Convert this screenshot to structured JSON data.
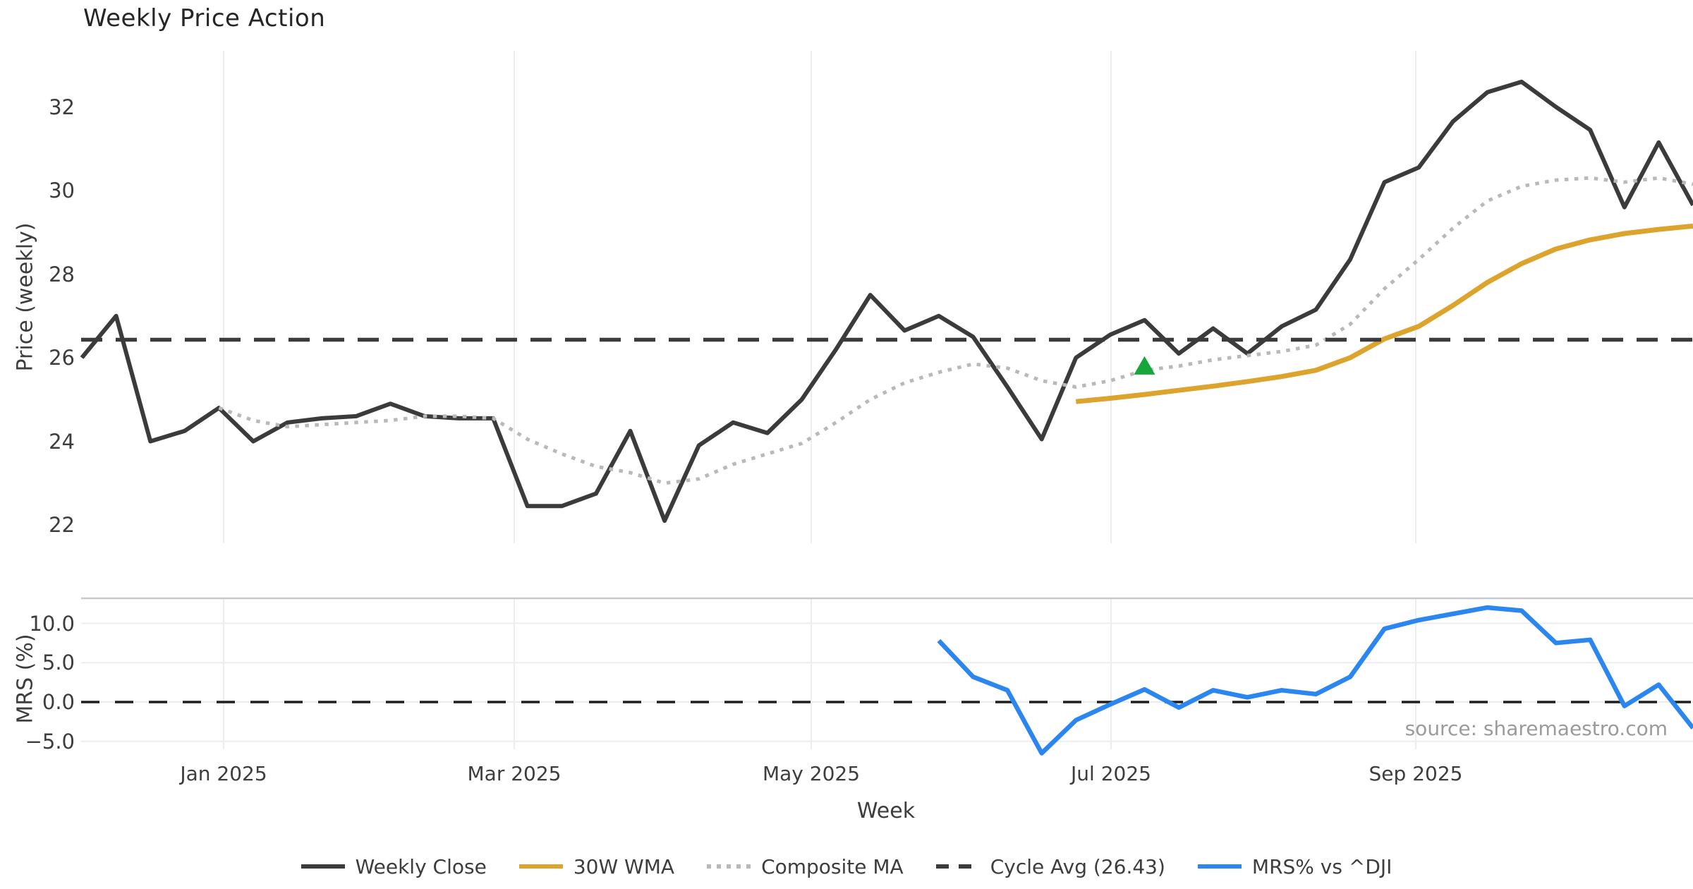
{
  "title": "Weekly Price Action",
  "source_text": "source: sharemaestro.com",
  "colors": {
    "weekly_close": "#3b3b3b",
    "wma_30w": "#dca42c",
    "composite_ma": "#b9b9b9",
    "cycle_avg": "#3b3b3b",
    "mrs_line": "#2b86ef",
    "signal_marker": "#17a63a",
    "gridline": "#ededf0",
    "panel_spine": "#c9c9d2",
    "zero_dash": "#1f1f1f",
    "tick_text": "#3d3d3d",
    "title_text": "#262626",
    "source_text": "#9b9b9b"
  },
  "axes": {
    "price_label": "Price (weekly)",
    "mrs_label": "MRS (%)",
    "x_label": "Week",
    "price_ticks": [
      "32",
      "30",
      "28",
      "26",
      "24",
      "22"
    ],
    "mrs_ticks": [
      "10.0",
      "5.0",
      "0.0",
      "−5.0"
    ],
    "x_ticks": [
      "Jan 2025",
      "Mar 2025",
      "May 2025",
      "Jul 2025",
      "Sep 2025"
    ]
  },
  "legend": {
    "items": [
      {
        "label": "Weekly Close",
        "style": "solid",
        "color": "#3b3b3b"
      },
      {
        "label": "30W WMA",
        "style": "solid",
        "color": "#dca42c"
      },
      {
        "label": "Composite MA",
        "style": "dotted",
        "color": "#b9b9b9"
      },
      {
        "label": "Cycle Avg (26.43)",
        "style": "dashed",
        "color": "#3b3b3b"
      },
      {
        "label": "MRS% vs ^DJI",
        "style": "solid",
        "color": "#2b86ef"
      }
    ]
  },
  "chart_data": {
    "type": "line",
    "title": "Weekly Price Action",
    "xlabel": "Week",
    "x_tick_labels": [
      "Jan 2025",
      "Mar 2025",
      "May 2025",
      "Jul 2025",
      "Sep 2025"
    ],
    "x_weeks": [
      "2024-12-09",
      "2024-12-16",
      "2024-12-23",
      "2024-12-30",
      "2025-01-06",
      "2025-01-13",
      "2025-01-20",
      "2025-01-27",
      "2025-02-03",
      "2025-02-10",
      "2025-02-17",
      "2025-02-24",
      "2025-03-03",
      "2025-03-10",
      "2025-03-17",
      "2025-03-24",
      "2025-03-31",
      "2025-04-07",
      "2025-04-14",
      "2025-04-21",
      "2025-04-28",
      "2025-05-05",
      "2025-05-12",
      "2025-05-19",
      "2025-05-26",
      "2025-06-02",
      "2025-06-09",
      "2025-06-16",
      "2025-06-23",
      "2025-06-30",
      "2025-07-07",
      "2025-07-14",
      "2025-07-21",
      "2025-07-28",
      "2025-08-04",
      "2025-08-11",
      "2025-08-18",
      "2025-08-25",
      "2025-09-01",
      "2025-09-08",
      "2025-09-15",
      "2025-09-22",
      "2025-09-29",
      "2025-10-06",
      "2025-10-13",
      "2025-10-20",
      "2025-10-27",
      "2025-11-03"
    ],
    "panels": [
      {
        "ylabel": "Price (weekly)",
        "ylim": [
          21.5,
          33.5
        ],
        "y_ticks": [
          22,
          24,
          26,
          28,
          30,
          32
        ],
        "grid": "vertical-only",
        "series": [
          {
            "name": "Weekly Close",
            "color": "#3b3b3b",
            "style": "solid",
            "width": 6,
            "values": [
              26.0,
              27.0,
              24.0,
              24.25,
              24.8,
              24.0,
              24.45,
              24.55,
              24.6,
              24.9,
              24.6,
              24.55,
              24.55,
              22.45,
              22.45,
              22.75,
              24.25,
              22.1,
              23.9,
              24.45,
              24.2,
              25.0,
              26.2,
              27.5,
              26.65,
              27.0,
              26.5,
              25.3,
              24.05,
              26.0,
              26.55,
              26.9,
              26.1,
              26.7,
              26.1,
              26.75,
              27.15,
              28.35,
              30.2,
              30.55,
              31.65,
              32.35,
              32.6,
              32.0,
              31.45,
              29.6,
              31.15,
              29.65
            ]
          },
          {
            "name": "30W WMA",
            "color": "#dca42c",
            "style": "solid",
            "width": 7,
            "values": [
              null,
              null,
              null,
              null,
              null,
              null,
              null,
              null,
              null,
              null,
              null,
              null,
              null,
              null,
              null,
              null,
              null,
              null,
              null,
              null,
              null,
              null,
              null,
              null,
              null,
              null,
              null,
              null,
              null,
              24.95,
              25.03,
              25.12,
              25.22,
              25.32,
              25.43,
              25.55,
              25.7,
              26.0,
              26.45,
              26.75,
              27.25,
              27.8,
              28.25,
              28.6,
              28.82,
              28.97,
              29.07,
              29.15
            ]
          },
          {
            "name": "Composite MA",
            "color": "#b9b9b9",
            "style": "dotted",
            "width": 5,
            "values": [
              null,
              null,
              null,
              null,
              24.8,
              24.5,
              24.35,
              24.4,
              24.45,
              24.5,
              24.6,
              24.6,
              24.55,
              24.05,
              23.7,
              23.4,
              23.25,
              23.0,
              23.1,
              23.45,
              23.7,
              23.95,
              24.45,
              25.0,
              25.4,
              25.65,
              25.85,
              25.75,
              25.45,
              25.3,
              25.45,
              25.7,
              25.8,
              25.95,
              26.05,
              26.15,
              26.3,
              26.8,
              27.65,
              28.35,
              29.1,
              29.75,
              30.1,
              30.25,
              30.3,
              30.2,
              30.3,
              30.15
            ]
          },
          {
            "name": "Cycle Avg (26.43)",
            "color": "#3b3b3b",
            "style": "dashed",
            "width": 5.5,
            "constant": 26.43
          }
        ],
        "markers": [
          {
            "shape": "triangle-up",
            "color": "#17a63a",
            "x": "2025-07-14",
            "y": 25.8
          }
        ]
      },
      {
        "ylabel": "MRS (%)",
        "ylim": [
          -7,
          13.2
        ],
        "y_ticks": [
          -5.0,
          0.0,
          5.0,
          10.0
        ],
        "grid": "both",
        "zero_line": true,
        "series": [
          {
            "name": "MRS% vs ^DJI",
            "color": "#2b86ef",
            "style": "solid",
            "width": 6.5,
            "values": [
              null,
              null,
              null,
              null,
              null,
              null,
              null,
              null,
              null,
              null,
              null,
              null,
              null,
              null,
              null,
              null,
              null,
              null,
              null,
              null,
              null,
              null,
              null,
              null,
              null,
              7.8,
              3.2,
              1.5,
              -6.5,
              -2.3,
              -0.3,
              1.6,
              -0.7,
              1.5,
              0.6,
              1.5,
              1.0,
              3.2,
              9.3,
              10.4,
              11.2,
              12.0,
              11.6,
              7.5,
              7.9,
              -0.5,
              2.2,
              -3.3
            ]
          }
        ]
      }
    ]
  }
}
